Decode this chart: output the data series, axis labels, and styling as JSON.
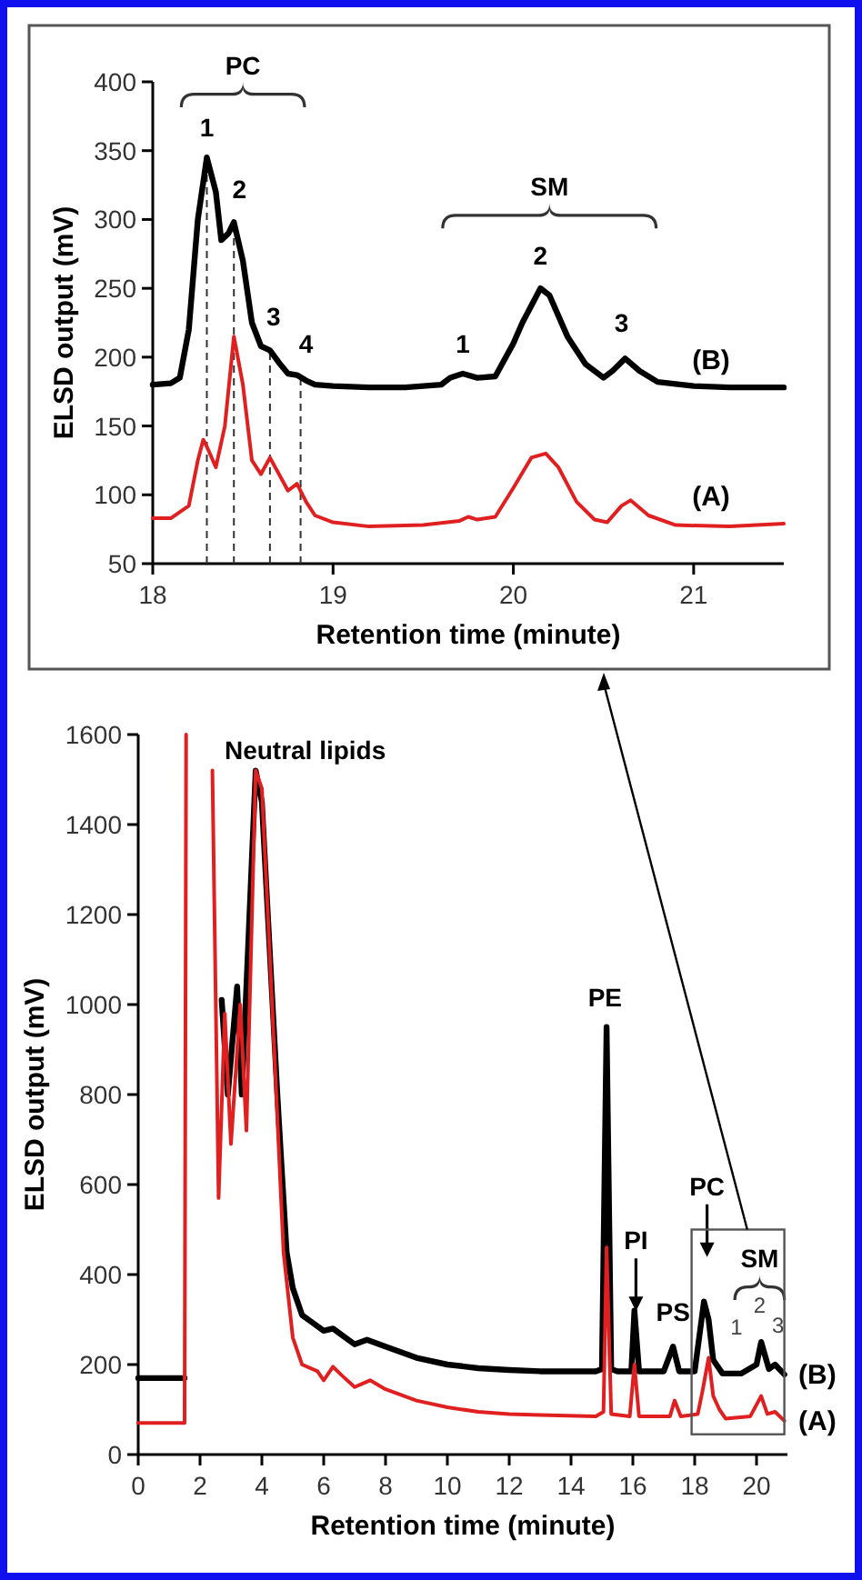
{
  "chart_data": [
    {
      "type": "line",
      "xlabel": "Retention time (minute)",
      "ylabel": "ELSD output (mV)",
      "xlim": [
        18,
        21.5
      ],
      "ylim": [
        50,
        400
      ],
      "xticks": [
        18,
        19,
        20,
        21
      ],
      "yticks": [
        50,
        100,
        150,
        200,
        250,
        300,
        350,
        400
      ],
      "series": [
        {
          "name": "(B)",
          "color": "#000000",
          "x": [
            18.0,
            18.1,
            18.15,
            18.2,
            18.25,
            18.3,
            18.35,
            18.38,
            18.42,
            18.45,
            18.5,
            18.55,
            18.6,
            18.65,
            18.7,
            18.75,
            18.8,
            18.85,
            18.9,
            19.0,
            19.2,
            19.4,
            19.6,
            19.65,
            19.72,
            19.8,
            19.9,
            20.0,
            20.05,
            20.15,
            20.2,
            20.3,
            20.4,
            20.5,
            20.55,
            20.62,
            20.7,
            20.8,
            21.0,
            21.2,
            21.5
          ],
          "values": [
            180,
            181,
            185,
            220,
            300,
            345,
            320,
            285,
            290,
            298,
            270,
            225,
            208,
            205,
            196,
            188,
            187,
            183,
            180,
            179,
            178,
            178,
            180,
            185,
            188,
            185,
            186,
            210,
            225,
            250,
            245,
            215,
            195,
            185,
            190,
            199,
            190,
            182,
            179,
            178,
            178
          ]
        },
        {
          "name": "(A)",
          "color": "#e02020",
          "x": [
            18.0,
            18.1,
            18.2,
            18.25,
            18.28,
            18.3,
            18.35,
            18.4,
            18.45,
            18.5,
            18.55,
            18.6,
            18.65,
            18.7,
            18.75,
            18.8,
            18.85,
            18.9,
            19.0,
            19.2,
            19.5,
            19.7,
            19.75,
            19.8,
            19.9,
            20.0,
            20.1,
            20.18,
            20.25,
            20.35,
            20.45,
            20.52,
            20.6,
            20.65,
            20.75,
            20.9,
            21.2,
            21.5
          ],
          "values": [
            83,
            83,
            92,
            125,
            140,
            135,
            120,
            150,
            215,
            180,
            125,
            115,
            127,
            115,
            103,
            108,
            95,
            85,
            80,
            77,
            78,
            81,
            84,
            82,
            84,
            105,
            127,
            130,
            120,
            95,
            82,
            80,
            92,
            96,
            85,
            78,
            77,
            79
          ]
        }
      ],
      "ref_lines": [
        {
          "axis": "x",
          "value": 18.3,
          "line_style": "dashed"
        },
        {
          "axis": "x",
          "value": 18.45,
          "line_style": "dashed"
        },
        {
          "axis": "x",
          "value": 18.65,
          "line_style": "dashed"
        },
        {
          "axis": "x",
          "value": 18.82,
          "line_style": "dashed"
        }
      ],
      "annotations": [
        "PC",
        "1",
        "2",
        "3",
        "4",
        "SM",
        "1",
        "2",
        "3"
      ]
    },
    {
      "type": "line",
      "xlabel": "Retention time (minute)",
      "ylabel": "ELSD output (mV)",
      "xlim": [
        0,
        21
      ],
      "ylim": [
        0,
        1600
      ],
      "xticks": [
        0,
        2,
        4,
        6,
        8,
        10,
        12,
        14,
        16,
        18,
        20
      ],
      "yticks": [
        0,
        200,
        400,
        600,
        800,
        1000,
        1200,
        1400,
        1600
      ],
      "series": [
        {
          "name": "(B)",
          "color": "#000000",
          "x": [
            0,
            1.5,
            1.6,
            2.7,
            2.9,
            3.2,
            3.35,
            3.8,
            4.0,
            4.5,
            4.8,
            5.0,
            5.3,
            5.6,
            6.0,
            6.3,
            6.6,
            7.0,
            7.4,
            8,
            9,
            10,
            11,
            12,
            13,
            14.8,
            15.0,
            15.15,
            15.3,
            15.5,
            15.95,
            16.05,
            16.2,
            17.0,
            17.3,
            17.5,
            18.0,
            18.3,
            18.45,
            18.6,
            18.9,
            19.5,
            19.7,
            20.0,
            20.15,
            20.4,
            20.6,
            20.9
          ],
          "values": [
            170,
            170,
            null,
            1010,
            800,
            1040,
            800,
            1520,
            1450,
            800,
            450,
            370,
            310,
            295,
            275,
            280,
            265,
            245,
            255,
            240,
            215,
            200,
            192,
            188,
            185,
            185,
            190,
            950,
            190,
            185,
            185,
            320,
            185,
            185,
            240,
            185,
            185,
            340,
            300,
            210,
            180,
            180,
            188,
            200,
            250,
            190,
            200,
            178
          ]
        },
        {
          "name": "(A)",
          "color": "#e02020",
          "x": [
            0,
            1.5,
            1.55,
            1.6,
            2.4,
            2.6,
            2.8,
            3.0,
            3.3,
            3.5,
            3.8,
            4.0,
            4.4,
            4.7,
            5.0,
            5.3,
            5.8,
            6.0,
            6.3,
            6.6,
            7.0,
            7.5,
            8,
            9,
            10,
            11,
            12,
            13,
            14.8,
            15.05,
            15.15,
            15.3,
            15.9,
            16.05,
            16.2,
            17.2,
            17.35,
            17.55,
            18.1,
            18.25,
            18.45,
            18.6,
            18.8,
            19.0,
            19.8,
            20.15,
            20.35,
            20.6,
            20.9
          ],
          "values": [
            70,
            70,
            1600,
            null,
            1520,
            570,
            980,
            690,
            1000,
            720,
            1520,
            1480,
            900,
            450,
            260,
            200,
            185,
            165,
            195,
            175,
            150,
            165,
            145,
            120,
            105,
            95,
            90,
            88,
            85,
            95,
            460,
            90,
            85,
            200,
            85,
            85,
            120,
            85,
            90,
            140,
            215,
            130,
            100,
            80,
            85,
            130,
            90,
            95,
            75
          ]
        }
      ],
      "annotations": [
        "Neutral lipids",
        "PE",
        "PI",
        "PS",
        "PC",
        "SM",
        "1",
        "2",
        "3"
      ]
    }
  ]
}
